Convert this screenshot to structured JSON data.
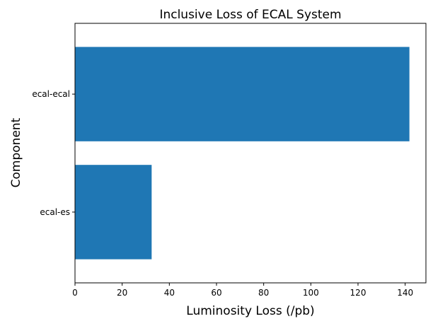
{
  "chart_data": {
    "type": "bar",
    "orientation": "horizontal",
    "title": "Inclusive Loss of ECAL System",
    "xlabel": "Luminosity Loss (/pb)",
    "ylabel": "Component",
    "categories": [
      "ecal-ecal",
      "ecal-es"
    ],
    "values": [
      141.8,
      32.5
    ],
    "xlim": [
      0,
      148.8
    ],
    "xticks": [
      0,
      20,
      40,
      60,
      80,
      100,
      120,
      140
    ],
    "grid": false,
    "bar_color": "#1f77b4"
  }
}
